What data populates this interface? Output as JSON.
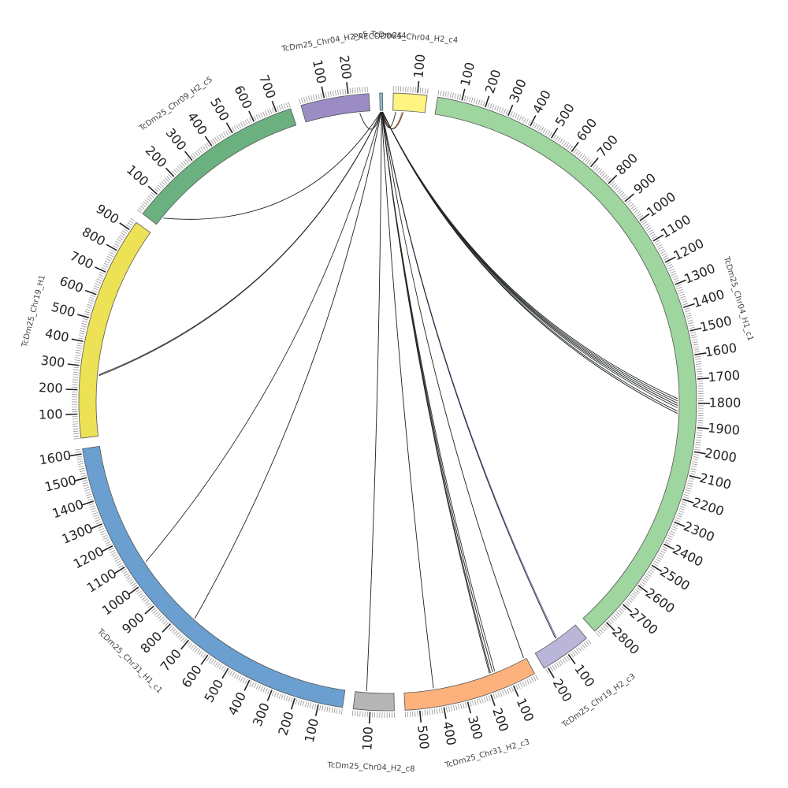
{
  "chart_data": {
    "type": "circos",
    "segments": [
      {
        "name": "PRECOD0644",
        "length": 12,
        "color": "#8fbcd8",
        "label_major": 100,
        "show_ticks": false
      },
      {
        "name": "TcDm25_Chr04_H2_c4",
        "length": 140,
        "color": "#fff382",
        "label_major": 100,
        "show_ticks": true
      },
      {
        "name": "TcDm25_Chr04_H1_c1",
        "length": 2860,
        "color": "#9fd59e",
        "label_major": 100,
        "show_ticks": true
      },
      {
        "name": "TcDm25_Chr19_H2_c3",
        "length": 215,
        "color": "#bab6d9",
        "label_major": 100,
        "show_ticks": true
      },
      {
        "name": "TcDm25_Chr31_H2_c3",
        "length": 560,
        "color": "#fdb27e",
        "label_major": 100,
        "show_ticks": true
      },
      {
        "name": "TcDm25_Chr04_H2_c8",
        "length": 170,
        "color": "#b5b5b5",
        "label_major": 100,
        "show_ticks": true
      },
      {
        "name": "TcDm25_Chr31_H1_c1",
        "length": 1620,
        "color": "#6a9fcf",
        "label_major": 100,
        "show_ticks": true
      },
      {
        "name": "TcDm25_Chr19_H1",
        "length": 940,
        "color": "#ede155",
        "label_major": 100,
        "show_ticks": true
      },
      {
        "name": "TcDm25_Chr09_H2_c5",
        "length": 760,
        "color": "#6bb07f",
        "label_major": 100,
        "show_ticks": true
      },
      {
        "name": "TcDm25_Chr04_H2_c5",
        "length": 285,
        "color": "#9b8cc4",
        "label_major": 100,
        "show_ticks": true
      }
    ],
    "links": [
      {
        "from": "PRECOD0644",
        "from_pos": 2,
        "to": "TcDm25_Chr04_H2_c5",
        "to_pos": 240,
        "color": "#1f1f1f"
      },
      {
        "from": "PRECOD0644",
        "from_pos": 3,
        "to": "TcDm25_Chr09_H2_c5",
        "to_pos": 40,
        "color": "#1f1f1f"
      },
      {
        "from": "PRECOD0644",
        "from_pos": 4,
        "to": "TcDm25_Chr19_H1",
        "to_pos": 270,
        "color": "#2a3a2a"
      },
      {
        "from": "PRECOD0644",
        "from_pos": 5,
        "to": "TcDm25_Chr19_H1",
        "to_pos": 265,
        "color": "#3a2a2a"
      },
      {
        "from": "PRECOD0644",
        "from_pos": 4,
        "to": "TcDm25_Chr31_H1_c1",
        "to_pos": 1070,
        "color": "#2a2a2a"
      },
      {
        "from": "PRECOD0644",
        "from_pos": 5,
        "to": "TcDm25_Chr31_H1_c1",
        "to_pos": 740,
        "color": "#1f1f1f"
      },
      {
        "from": "PRECOD0644",
        "from_pos": 6,
        "to": "TcDm25_Chr04_H2_c8",
        "to_pos": 120,
        "color": "#1f1f1f"
      },
      {
        "from": "PRECOD0644",
        "from_pos": 6,
        "to": "TcDm25_Chr31_H2_c3",
        "to_pos": 430,
        "color": "#1f1f1f"
      },
      {
        "from": "PRECOD0644",
        "from_pos": 7,
        "to": "TcDm25_Chr31_H2_c3",
        "to_pos": 150,
        "color": "#243a24"
      },
      {
        "from": "PRECOD0644",
        "from_pos": 7,
        "to": "TcDm25_Chr31_H2_c3",
        "to_pos": 160,
        "color": "#1f1f1f"
      },
      {
        "from": "PRECOD0644",
        "from_pos": 8,
        "to": "TcDm25_Chr31_H2_c3",
        "to_pos": 170,
        "color": "#3a2a2a"
      },
      {
        "from": "PRECOD0644",
        "from_pos": 8,
        "to": "TcDm25_Chr31_H2_c3",
        "to_pos": 175,
        "color": "#1f1f1f"
      },
      {
        "from": "PRECOD0644",
        "from_pos": 9,
        "to": "TcDm25_Chr31_H2_c3",
        "to_pos": 10,
        "color": "#1f1f1f"
      },
      {
        "from": "PRECOD0644",
        "from_pos": 9,
        "to": "TcDm25_Chr19_H2_c3",
        "to_pos": 100,
        "color": "#5a5a9a"
      },
      {
        "from": "PRECOD0644",
        "from_pos": 8,
        "to": "TcDm25_Chr19_H2_c3",
        "to_pos": 105,
        "color": "#1f1f1f"
      },
      {
        "from": "PRECOD0644",
        "from_pos": 10,
        "to": "TcDm25_Chr04_H1_c1",
        "to_pos": 1780,
        "color": "#1f1f1f"
      },
      {
        "from": "PRECOD0644",
        "from_pos": 10,
        "to": "TcDm25_Chr04_H1_c1",
        "to_pos": 1790,
        "color": "#2a3a2a"
      },
      {
        "from": "PRECOD0644",
        "from_pos": 10,
        "to": "TcDm25_Chr04_H1_c1",
        "to_pos": 1800,
        "color": "#1f1f1f"
      },
      {
        "from": "PRECOD0644",
        "from_pos": 11,
        "to": "TcDm25_Chr04_H1_c1",
        "to_pos": 1810,
        "color": "#1f1f1f"
      },
      {
        "from": "PRECOD0644",
        "from_pos": 11,
        "to": "TcDm25_Chr04_H1_c1",
        "to_pos": 1820,
        "color": "#243a24"
      },
      {
        "from": "PRECOD0644",
        "from_pos": 11,
        "to": "TcDm25_Chr04_H1_c1",
        "to_pos": 1835,
        "color": "#1f1f1f"
      },
      {
        "from": "PRECOD0644",
        "from_pos": 11,
        "to": "TcDm25_Chr04_H1_c1",
        "to_pos": 1845,
        "color": "#1f1f1f"
      },
      {
        "from": "PRECOD0644",
        "from_pos": 9,
        "to": "TcDm25_Chr04_H2_c4",
        "to_pos": 40,
        "color": "#c87020"
      },
      {
        "from": "PRECOD0644",
        "from_pos": 10,
        "to": "TcDm25_Chr04_H2_c4",
        "to_pos": 45,
        "color": "#1f1f1f"
      },
      {
        "from": "PRECOD0644",
        "from_pos": 10,
        "to": "TcDm25_Chr04_H2_c4",
        "to_pos": 12,
        "color": "#1f1f1f"
      }
    ],
    "title": "",
    "legend": "none"
  }
}
